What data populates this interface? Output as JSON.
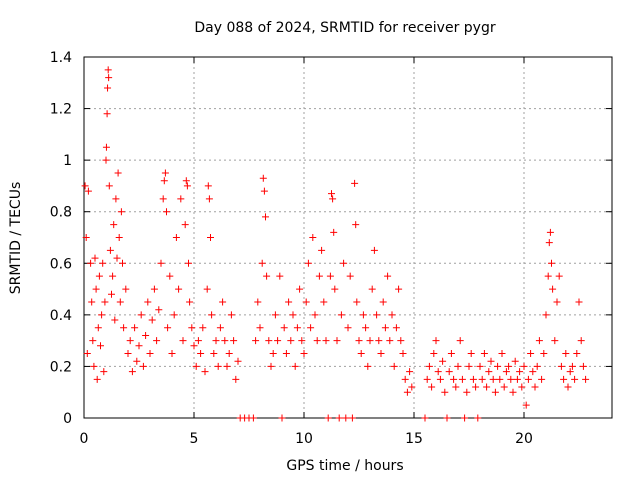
{
  "chart_data": {
    "type": "scatter",
    "title": "Day 088 of 2024, SRMTID for receiver pygr",
    "xlabel": "GPS time / hours",
    "ylabel": "SRMTID / TECUs",
    "xlim": [
      0,
      24
    ],
    "ylim": [
      0,
      1.4
    ],
    "xticks": [
      0,
      5,
      10,
      15,
      20
    ],
    "yticks": [
      0,
      0.2,
      0.4,
      0.6,
      0.8,
      1,
      1.2,
      1.4
    ],
    "xtick_labels": [
      "0",
      "5",
      "10",
      "15",
      "20"
    ],
    "ytick_labels": [
      "0",
      "0.2",
      "0.4",
      "0.6",
      "0.8",
      "1",
      "1.2",
      "1.4"
    ],
    "grid": true,
    "marker": "+",
    "color": "#ff0000",
    "series": [
      {
        "name": "SRMTID",
        "points": [
          [
            0.05,
            0.9
          ],
          [
            0.1,
            0.7
          ],
          [
            0.15,
            0.25
          ],
          [
            0.2,
            0.88
          ],
          [
            0.3,
            0.6
          ],
          [
            0.35,
            0.45
          ],
          [
            0.4,
            0.3
          ],
          [
            0.45,
            0.2
          ],
          [
            0.5,
            0.62
          ],
          [
            0.55,
            0.5
          ],
          [
            0.6,
            0.15
          ],
          [
            0.65,
            0.35
          ],
          [
            0.7,
            0.55
          ],
          [
            0.75,
            0.28
          ],
          [
            0.8,
            0.4
          ],
          [
            0.85,
            0.6
          ],
          [
            0.9,
            0.18
          ],
          [
            0.95,
            0.45
          ],
          [
            1.0,
            1.0
          ],
          [
            1.02,
            1.05
          ],
          [
            1.05,
            1.18
          ],
          [
            1.07,
            1.28
          ],
          [
            1.1,
            1.35
          ],
          [
            1.12,
            1.32
          ],
          [
            1.15,
            0.9
          ],
          [
            1.2,
            0.65
          ],
          [
            1.25,
            0.48
          ],
          [
            1.3,
            0.55
          ],
          [
            1.35,
            0.75
          ],
          [
            1.4,
            0.38
          ],
          [
            1.45,
            0.85
          ],
          [
            1.5,
            0.62
          ],
          [
            1.55,
            0.95
          ],
          [
            1.6,
            0.7
          ],
          [
            1.65,
            0.45
          ],
          [
            1.7,
            0.8
          ],
          [
            1.75,
            0.6
          ],
          [
            1.8,
            0.35
          ],
          [
            1.9,
            0.5
          ],
          [
            2.0,
            0.25
          ],
          [
            2.1,
            0.3
          ],
          [
            2.2,
            0.18
          ],
          [
            2.3,
            0.35
          ],
          [
            2.4,
            0.22
          ],
          [
            2.5,
            0.28
          ],
          [
            2.6,
            0.4
          ],
          [
            2.7,
            0.2
          ],
          [
            2.8,
            0.32
          ],
          [
            2.9,
            0.45
          ],
          [
            3.0,
            0.25
          ],
          [
            3.1,
            0.38
          ],
          [
            3.2,
            0.5
          ],
          [
            3.3,
            0.3
          ],
          [
            3.4,
            0.42
          ],
          [
            3.5,
            0.6
          ],
          [
            3.6,
            0.85
          ],
          [
            3.65,
            0.92
          ],
          [
            3.7,
            0.95
          ],
          [
            3.75,
            0.8
          ],
          [
            3.8,
            0.35
          ],
          [
            3.9,
            0.55
          ],
          [
            4.0,
            0.25
          ],
          [
            4.1,
            0.4
          ],
          [
            4.2,
            0.7
          ],
          [
            4.3,
            0.5
          ],
          [
            4.4,
            0.85
          ],
          [
            4.5,
            0.3
          ],
          [
            4.6,
            0.75
          ],
          [
            4.65,
            0.92
          ],
          [
            4.7,
            0.9
          ],
          [
            4.75,
            0.6
          ],
          [
            4.8,
            0.45
          ],
          [
            4.9,
            0.35
          ],
          [
            5.0,
            0.28
          ],
          [
            5.1,
            0.2
          ],
          [
            5.2,
            0.3
          ],
          [
            5.3,
            0.25
          ],
          [
            5.4,
            0.35
          ],
          [
            5.5,
            0.18
          ],
          [
            5.6,
            0.5
          ],
          [
            5.65,
            0.9
          ],
          [
            5.7,
            0.85
          ],
          [
            5.75,
            0.7
          ],
          [
            5.8,
            0.4
          ],
          [
            5.9,
            0.25
          ],
          [
            6.0,
            0.3
          ],
          [
            6.1,
            0.2
          ],
          [
            6.2,
            0.35
          ],
          [
            6.3,
            0.45
          ],
          [
            6.4,
            0.3
          ],
          [
            6.5,
            0.2
          ],
          [
            6.6,
            0.25
          ],
          [
            6.7,
            0.4
          ],
          [
            6.8,
            0.3
          ],
          [
            6.9,
            0.15
          ],
          [
            7.0,
            0.22
          ],
          [
            7.1,
            0.0
          ],
          [
            7.3,
            0.0
          ],
          [
            7.5,
            0.0
          ],
          [
            7.7,
            0.0
          ],
          [
            7.8,
            0.3
          ],
          [
            7.9,
            0.45
          ],
          [
            8.0,
            0.35
          ],
          [
            8.1,
            0.6
          ],
          [
            8.15,
            0.93
          ],
          [
            8.2,
            0.88
          ],
          [
            8.25,
            0.78
          ],
          [
            8.3,
            0.55
          ],
          [
            8.4,
            0.3
          ],
          [
            8.5,
            0.2
          ],
          [
            8.6,
            0.25
          ],
          [
            8.7,
            0.4
          ],
          [
            8.8,
            0.3
          ],
          [
            8.9,
            0.55
          ],
          [
            9.0,
            0.0
          ],
          [
            9.1,
            0.35
          ],
          [
            9.2,
            0.25
          ],
          [
            9.3,
            0.45
          ],
          [
            9.4,
            0.3
          ],
          [
            9.5,
            0.4
          ],
          [
            9.6,
            0.2
          ],
          [
            9.7,
            0.35
          ],
          [
            9.8,
            0.5
          ],
          [
            9.9,
            0.3
          ],
          [
            10.0,
            0.25
          ],
          [
            10.1,
            0.45
          ],
          [
            10.2,
            0.6
          ],
          [
            10.3,
            0.35
          ],
          [
            10.4,
            0.7
          ],
          [
            10.5,
            0.4
          ],
          [
            10.6,
            0.3
          ],
          [
            10.7,
            0.55
          ],
          [
            10.8,
            0.65
          ],
          [
            10.9,
            0.45
          ],
          [
            11.0,
            0.3
          ],
          [
            11.1,
            0.0
          ],
          [
            11.2,
            0.55
          ],
          [
            11.25,
            0.87
          ],
          [
            11.3,
            0.85
          ],
          [
            11.35,
            0.72
          ],
          [
            11.4,
            0.5
          ],
          [
            11.5,
            0.3
          ],
          [
            11.6,
            0.0
          ],
          [
            11.7,
            0.4
          ],
          [
            11.8,
            0.6
          ],
          [
            11.9,
            0.0
          ],
          [
            12.0,
            0.35
          ],
          [
            12.1,
            0.55
          ],
          [
            12.2,
            0.0
          ],
          [
            12.3,
            0.91
          ],
          [
            12.35,
            0.75
          ],
          [
            12.4,
            0.45
          ],
          [
            12.5,
            0.3
          ],
          [
            12.6,
            0.25
          ],
          [
            12.7,
            0.4
          ],
          [
            12.8,
            0.35
          ],
          [
            12.9,
            0.2
          ],
          [
            13.0,
            0.3
          ],
          [
            13.1,
            0.5
          ],
          [
            13.2,
            0.65
          ],
          [
            13.3,
            0.4
          ],
          [
            13.4,
            0.3
          ],
          [
            13.5,
            0.25
          ],
          [
            13.6,
            0.45
          ],
          [
            13.7,
            0.35
          ],
          [
            13.8,
            0.55
          ],
          [
            13.9,
            0.3
          ],
          [
            14.0,
            0.4
          ],
          [
            14.1,
            0.2
          ],
          [
            14.2,
            0.35
          ],
          [
            14.3,
            0.5
          ],
          [
            14.4,
            0.3
          ],
          [
            14.5,
            0.25
          ],
          [
            14.6,
            0.15
          ],
          [
            14.7,
            0.1
          ],
          [
            14.8,
            0.18
          ],
          [
            14.9,
            0.12
          ],
          [
            15.5,
            0.0
          ],
          [
            15.6,
            0.15
          ],
          [
            15.7,
            0.2
          ],
          [
            15.8,
            0.12
          ],
          [
            15.9,
            0.25
          ],
          [
            16.0,
            0.3
          ],
          [
            16.1,
            0.18
          ],
          [
            16.2,
            0.15
          ],
          [
            16.3,
            0.22
          ],
          [
            16.4,
            0.1
          ],
          [
            16.5,
            0.0
          ],
          [
            16.6,
            0.18
          ],
          [
            16.7,
            0.25
          ],
          [
            16.8,
            0.15
          ],
          [
            16.9,
            0.12
          ],
          [
            17.0,
            0.2
          ],
          [
            17.1,
            0.3
          ],
          [
            17.2,
            0.15
          ],
          [
            17.3,
            0.0
          ],
          [
            17.4,
            0.1
          ],
          [
            17.5,
            0.2
          ],
          [
            17.6,
            0.25
          ],
          [
            17.7,
            0.15
          ],
          [
            17.8,
            0.12
          ],
          [
            17.9,
            0.0
          ],
          [
            18.0,
            0.2
          ],
          [
            18.1,
            0.15
          ],
          [
            18.2,
            0.25
          ],
          [
            18.3,
            0.12
          ],
          [
            18.4,
            0.18
          ],
          [
            18.5,
            0.22
          ],
          [
            18.6,
            0.15
          ],
          [
            18.7,
            0.1
          ],
          [
            18.8,
            0.2
          ],
          [
            18.9,
            0.15
          ],
          [
            19.0,
            0.25
          ],
          [
            19.1,
            0.12
          ],
          [
            19.2,
            0.18
          ],
          [
            19.3,
            0.2
          ],
          [
            19.4,
            0.15
          ],
          [
            19.5,
            0.1
          ],
          [
            19.6,
            0.22
          ],
          [
            19.7,
            0.15
          ],
          [
            19.8,
            0.18
          ],
          [
            19.9,
            0.12
          ],
          [
            20.0,
            0.2
          ],
          [
            20.1,
            0.05
          ],
          [
            20.2,
            0.15
          ],
          [
            20.3,
            0.25
          ],
          [
            20.4,
            0.18
          ],
          [
            20.5,
            0.12
          ],
          [
            20.6,
            0.2
          ],
          [
            20.7,
            0.3
          ],
          [
            20.8,
            0.15
          ],
          [
            20.9,
            0.25
          ],
          [
            21.0,
            0.4
          ],
          [
            21.1,
            0.55
          ],
          [
            21.15,
            0.68
          ],
          [
            21.2,
            0.72
          ],
          [
            21.25,
            0.6
          ],
          [
            21.3,
            0.5
          ],
          [
            21.4,
            0.3
          ],
          [
            21.5,
            0.45
          ],
          [
            21.6,
            0.55
          ],
          [
            21.7,
            0.2
          ],
          [
            21.8,
            0.15
          ],
          [
            21.9,
            0.25
          ],
          [
            22.0,
            0.12
          ],
          [
            22.1,
            0.18
          ],
          [
            22.2,
            0.2
          ],
          [
            22.3,
            0.15
          ],
          [
            22.4,
            0.25
          ],
          [
            22.5,
            0.45
          ],
          [
            22.6,
            0.3
          ],
          [
            22.7,
            0.2
          ],
          [
            22.8,
            0.15
          ]
        ]
      }
    ]
  }
}
